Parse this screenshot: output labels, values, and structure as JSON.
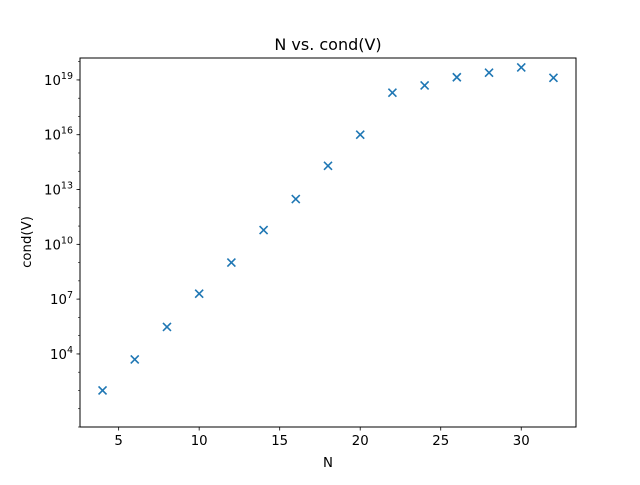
{
  "chart_data": {
    "type": "scatter",
    "title": "N vs. cond(V)",
    "xlabel": "N",
    "ylabel": "cond(V)",
    "x_scale": "linear",
    "y_scale": "log",
    "xlim": [
      2.6,
      33.4
    ],
    "ylim_log10": [
      0.0,
      20.2
    ],
    "x_ticks": [
      5,
      10,
      15,
      20,
      25,
      30
    ],
    "y_ticks_log10": [
      4,
      7,
      10,
      13,
      16,
      19
    ],
    "grid": false,
    "legend": "none",
    "marker": "x",
    "color": "#1f77b4",
    "series": [
      {
        "x": [
          4,
          6,
          8,
          10,
          12,
          14,
          16,
          18,
          20,
          22,
          24,
          26,
          28,
          30,
          32
        ],
        "y": [
          100,
          5000,
          300000,
          20000000,
          1000000000,
          60000000000,
          3000000000000,
          200000000000000,
          10000000000000000,
          2000000000000000000,
          5000000000000000000,
          14000000000000000000,
          25000000000000000000,
          48000000000000000000,
          13000000000000000000
        ]
      }
    ]
  }
}
